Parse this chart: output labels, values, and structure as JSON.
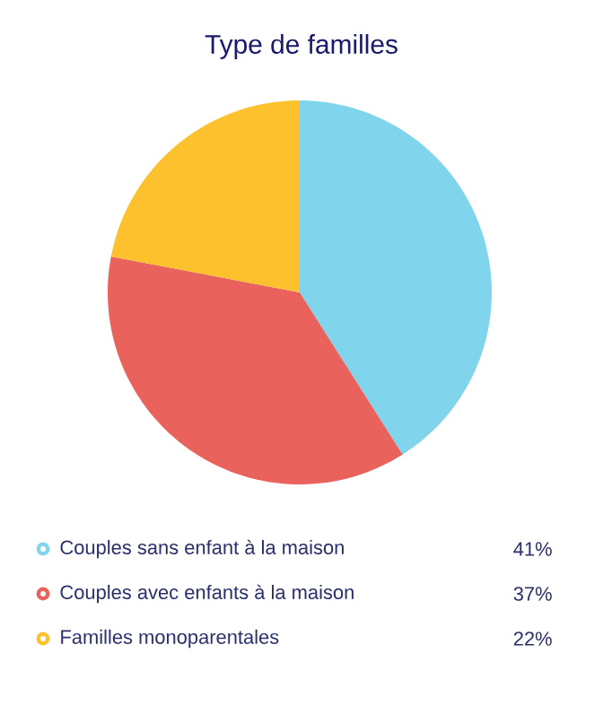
{
  "chart_data": {
    "type": "pie",
    "title": "Type de familles",
    "categories": [
      "Couples sans enfant à la maison",
      "Couples avec enfants à la maison",
      "Familles monoparentales"
    ],
    "values": [
      41,
      37,
      22
    ],
    "colors": [
      "#80d4eb",
      "#e9625b",
      "#fcc12d"
    ],
    "value_labels": [
      "41%",
      "37%",
      "22%"
    ],
    "legend": "bottom"
  }
}
